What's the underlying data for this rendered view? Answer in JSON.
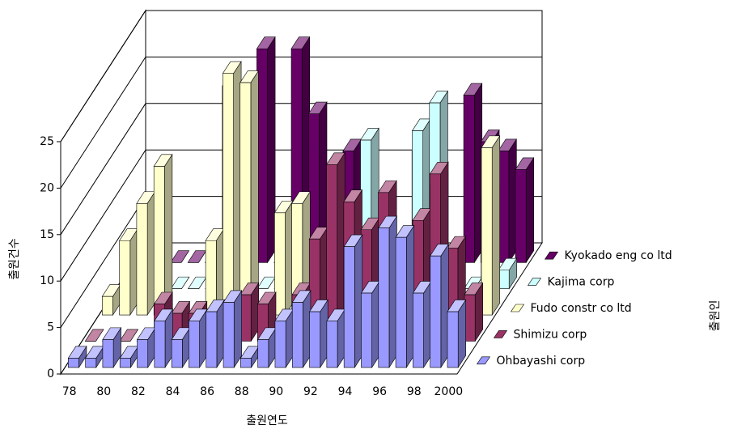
{
  "chart_data": {
    "type": "bar3d",
    "y_label": "출원건수",
    "x_label": "출원연도",
    "z_label": "출원인",
    "categories": [
      "78",
      null,
      "80",
      null,
      "82",
      null,
      "84",
      null,
      "86",
      null,
      "88",
      null,
      "90",
      null,
      "92",
      null,
      "94",
      null,
      "96",
      null,
      "98",
      null,
      "2000"
    ],
    "series": [
      {
        "name": "Ohbayashi corp",
        "color": "#9999ff",
        "values": [
          1,
          1,
          3,
          1,
          3,
          5,
          3,
          5,
          6,
          7,
          1,
          3,
          5,
          7,
          6,
          5,
          13,
          8,
          15,
          14,
          8,
          12,
          6
        ]
      },
      {
        "name": "Shimizu corp",
        "color": "#993366",
        "values": [
          0,
          0,
          0,
          0,
          4,
          3,
          3,
          2,
          3,
          5,
          4,
          1,
          5,
          11,
          19,
          15,
          12,
          16,
          9,
          13,
          18,
          10,
          5
        ]
      },
      {
        "name": "Fudo constr co ltd",
        "color": "#ffffcc",
        "values": [
          2,
          8,
          12,
          16,
          0,
          0,
          8,
          26,
          25,
          0,
          11,
          12,
          0,
          0,
          0,
          0,
          0,
          0,
          0,
          14,
          0,
          0,
          18
        ]
      },
      {
        "name": "Kajima corp",
        "color": "#ccffff",
        "values": [
          0,
          0,
          0,
          0,
          0,
          0,
          0,
          0,
          0,
          0,
          0,
          0,
          0,
          0,
          16,
          0,
          0,
          17,
          20,
          0,
          0,
          10,
          2
        ]
      },
      {
        "name": "Kyokado eng co ltd",
        "color": "#660066",
        "values": [
          0,
          0,
          0,
          0,
          0,
          19,
          0,
          23,
          0,
          23,
          16,
          0,
          12,
          0,
          0,
          0,
          12,
          0,
          0,
          18,
          13,
          12,
          10
        ]
      }
    ],
    "ylim": [
      0,
      25
    ],
    "yticks": [
      0,
      5,
      10,
      15,
      20,
      25
    ],
    "grid": true
  }
}
